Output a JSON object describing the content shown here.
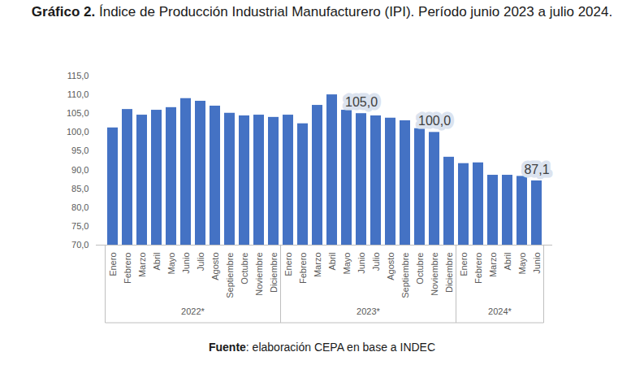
{
  "chart_data": {
    "type": "bar",
    "title": "Gráfico 2. Índice de Producción Industrial Manufacturero (IPI). Período junio 2023 a julio 2024.",
    "source": "Fuente: elaboración CEPA en base a INDEC",
    "categories": [
      "Enero",
      "Febrero",
      "Marzo",
      "Abril",
      "Mayo",
      "Junio",
      "Julio",
      "Agosto",
      "Septiembre",
      "Octubre",
      "Noviembre",
      "Diciembre",
      "Enero",
      "Febrero",
      "Marzo",
      "Abril",
      "Mayo",
      "Junio",
      "Julio",
      "Agosto",
      "Septiembre",
      "Octubre",
      "Noviembre",
      "Diciembre",
      "Enero",
      "Febrero",
      "Marzo",
      "Abril",
      "Mayo",
      "Junio"
    ],
    "category_groups": [
      {
        "label": "2022*",
        "size": 12
      },
      {
        "label": "2023*",
        "size": 12
      },
      {
        "label": "2024*",
        "size": 6
      }
    ],
    "values": [
      101.2,
      106.1,
      104.6,
      105.9,
      106.6,
      109.0,
      108.3,
      107.0,
      105.1,
      104.4,
      104.6,
      104.0,
      104.6,
      102.3,
      107.2,
      110.0,
      105.9,
      105.0,
      104.4,
      103.8,
      103.1,
      101.0,
      100.0,
      93.4,
      91.7,
      91.9,
      88.6,
      88.6,
      88.3,
      87.1
    ],
    "color": "#4472c4",
    "ylim": [
      70,
      115
    ],
    "yticks": [
      {
        "value": 70,
        "label": "70,0"
      },
      {
        "value": 75,
        "label": "75,0"
      },
      {
        "value": 80,
        "label": "80,0"
      },
      {
        "value": 85,
        "label": "85,0"
      },
      {
        "value": 90,
        "label": "90,0"
      },
      {
        "value": 95,
        "label": "95,0"
      },
      {
        "value": 100,
        "label": "100,0"
      },
      {
        "value": 105,
        "label": "105,0"
      },
      {
        "value": 110,
        "label": "110,0"
      },
      {
        "value": 115,
        "label": "115,0"
      }
    ],
    "grid": false,
    "data_labels": false,
    "annotations": [
      {
        "category_index": 17,
        "value": 105.0,
        "label": "105,0"
      },
      {
        "category_index": 22,
        "value": 100.0,
        "label": "100,0"
      },
      {
        "category_index": 29,
        "value": 87.1,
        "label": "87,1"
      }
    ]
  }
}
